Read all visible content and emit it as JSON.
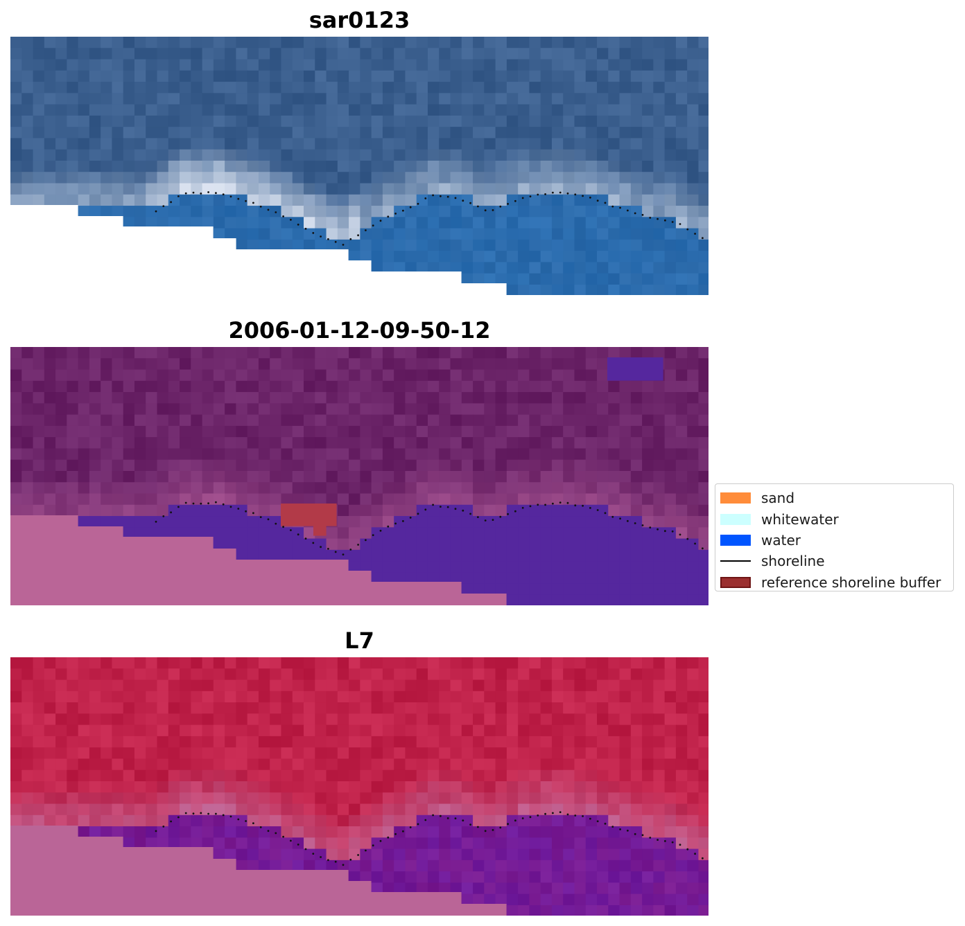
{
  "panels": [
    {
      "title": "sar0123",
      "style": "rgb"
    },
    {
      "title": "2006-01-12-09-50-12",
      "style": "classified"
    },
    {
      "title": "L7",
      "style": "nir"
    }
  ],
  "legend": {
    "items": [
      {
        "label": "sand",
        "color": "#ff8c3a",
        "kind": "patch"
      },
      {
        "label": "whitewater",
        "color": "#ccffff",
        "kind": "patch"
      },
      {
        "label": "water",
        "color": "#0055ff",
        "kind": "patch"
      },
      {
        "label": "shoreline",
        "color": "#000000",
        "kind": "line"
      },
      {
        "label": "reference shoreline buffer",
        "color": "#9b2f2f",
        "kind": "patch"
      }
    ]
  },
  "colors": {
    "nodata": "#ffffff",
    "nodata_overlay": "#ba6597",
    "water_overlay": "#55279e",
    "buffer_overlay": "#b23a48",
    "rgb_land": "#3b5f8e",
    "rgb_water": "#2a6db0",
    "classified_land": "#6b2468",
    "nir_land": "#c0224a",
    "nir_water": "#6e1a9c"
  }
}
